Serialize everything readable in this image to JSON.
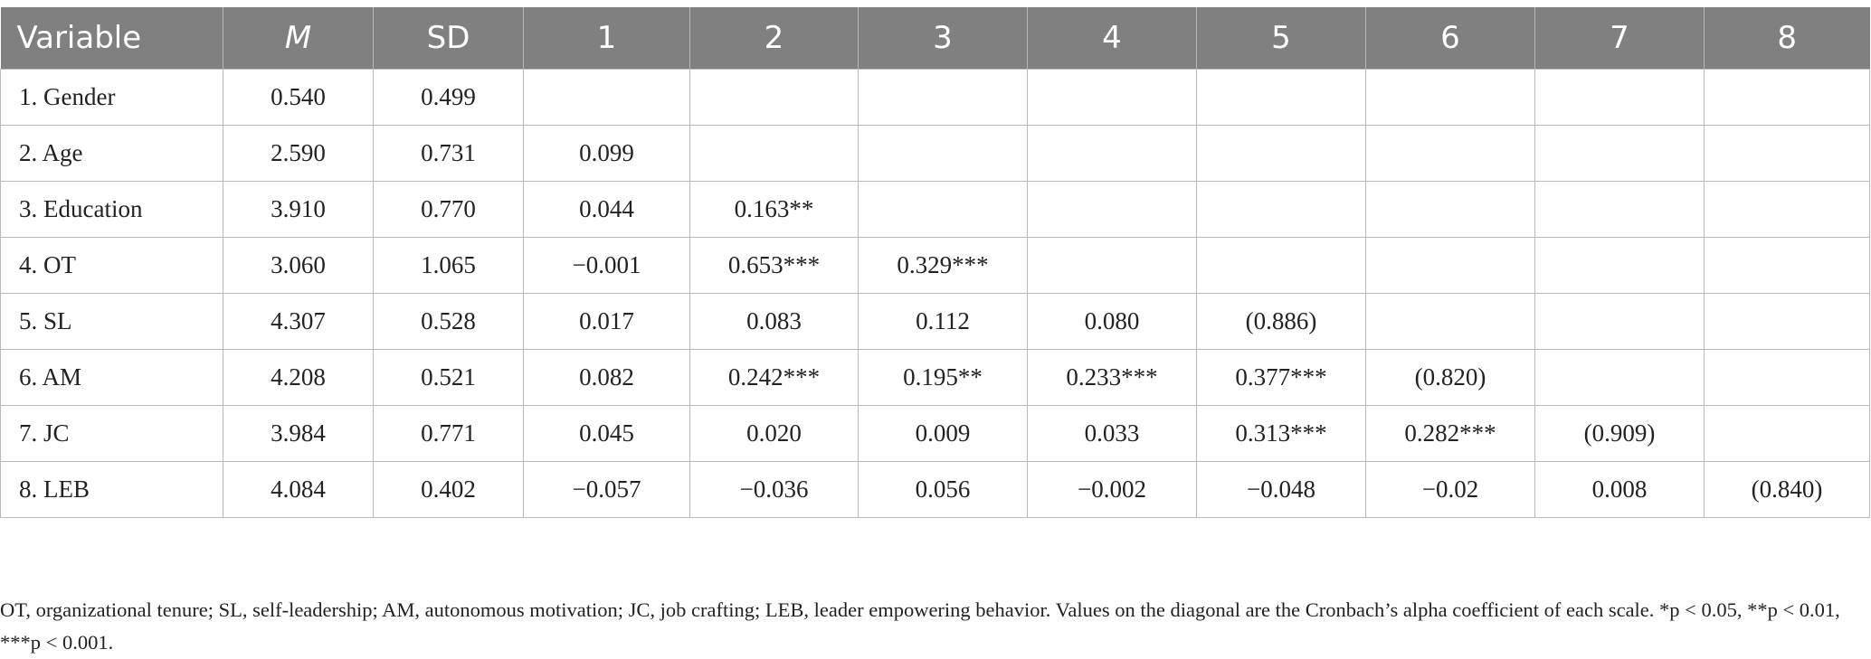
{
  "table": {
    "headers": [
      "Variable",
      "M",
      "SD",
      "1",
      "2",
      "3",
      "4",
      "5",
      "6",
      "7",
      "8"
    ],
    "rows": [
      [
        "1. Gender",
        "0.540",
        "0.499",
        "",
        "",
        "",
        "",
        "",
        "",
        "",
        ""
      ],
      [
        "2. Age",
        "2.590",
        "0.731",
        "0.099",
        "",
        "",
        "",
        "",
        "",
        "",
        ""
      ],
      [
        "3. Education",
        "3.910",
        "0.770",
        "0.044",
        "0.163**",
        "",
        "",
        "",
        "",
        "",
        ""
      ],
      [
        "4. OT",
        "3.060",
        "1.065",
        "−0.001",
        "0.653***",
        "0.329***",
        "",
        "",
        "",
        "",
        ""
      ],
      [
        "5. SL",
        "4.307",
        "0.528",
        "0.017",
        "0.083",
        "0.112",
        "0.080",
        "(0.886)",
        "",
        "",
        ""
      ],
      [
        "6. AM",
        "4.208",
        "0.521",
        "0.082",
        "0.242***",
        "0.195**",
        "0.233***",
        "0.377***",
        "(0.820)",
        "",
        ""
      ],
      [
        "7. JC",
        "3.984",
        "0.771",
        "0.045",
        "0.020",
        "0.009",
        "0.033",
        "0.313***",
        "0.282***",
        "(0.909)",
        ""
      ],
      [
        "8. LEB",
        "4.084",
        "0.402",
        "−0.057",
        "−0.036",
        "0.056",
        "−0.002",
        "−0.048",
        "−0.02",
        "0.008",
        "(0.840)"
      ]
    ]
  },
  "note": "OT, organizational tenure; SL, self-leadership; AM, autonomous motivation; JC, job crafting; LEB, leader empowering behavior. Values on the diagonal are the Cronbach’s alpha coefficient of each scale. *p < 0.05, **p < 0.01, ***p < 0.001."
}
